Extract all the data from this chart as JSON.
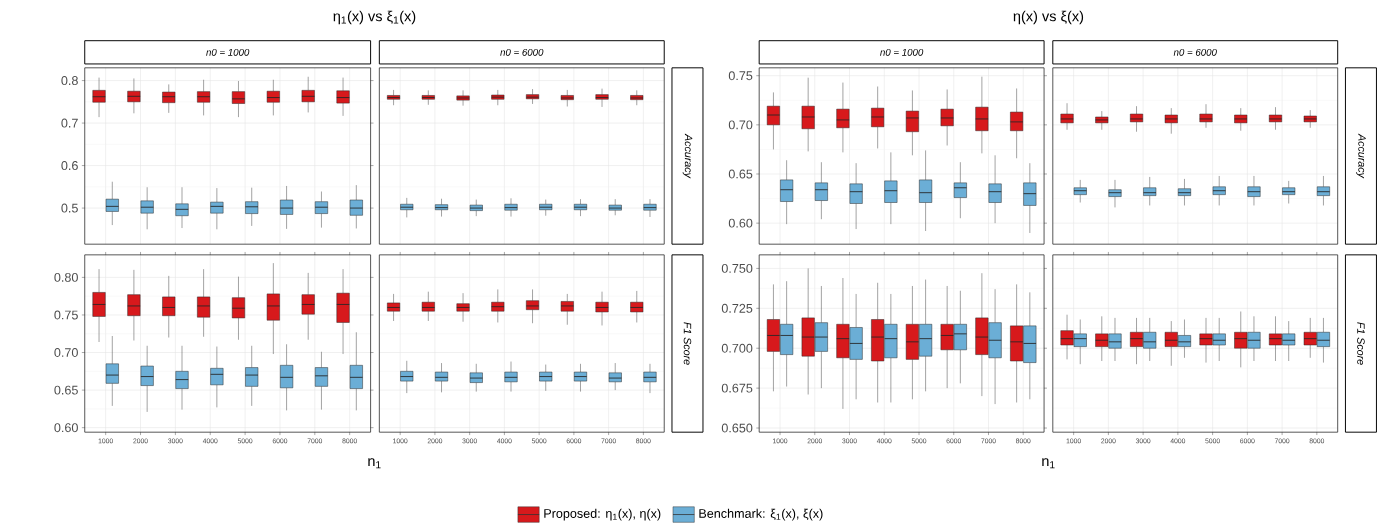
{
  "chart_data": [
    {
      "type": "box",
      "title": "n0 = 1000",
      "annotations": [
        "η$_{1}$(x) vs ξ$_{1}$(x)"
      ],
      "legend": "bottom",
      "grid": true,
      "tick_labels": "y",
      "categories": [
        "1000",
        "2000",
        "3000",
        "4000",
        "5000",
        "6000",
        "7000",
        "8000"
      ],
      "ylim": [
        0.415,
        0.83
      ],
      "yticks": [
        0.5,
        0.6,
        0.7,
        0.8
      ],
      "series": [
        {
          "name": "Proposed: η$_{1}$(x), η(x)",
          "color": "#d7191c",
          "boxes": [
            {
              "low": 0.714,
              "q1": 0.749,
              "median": 0.762,
              "q3": 0.777,
              "high": 0.807
            },
            {
              "low": 0.723,
              "q1": 0.75,
              "median": 0.763,
              "q3": 0.775,
              "high": 0.805
            },
            {
              "low": 0.724,
              "q1": 0.748,
              "median": 0.762,
              "q3": 0.773,
              "high": 0.791
            },
            {
              "low": 0.718,
              "q1": 0.749,
              "median": 0.762,
              "q3": 0.774,
              "high": 0.802
            },
            {
              "low": 0.714,
              "q1": 0.746,
              "median": 0.757,
              "q3": 0.774,
              "high": 0.799
            },
            {
              "low": 0.718,
              "q1": 0.749,
              "median": 0.76,
              "q3": 0.775,
              "high": 0.802
            },
            {
              "low": 0.725,
              "q1": 0.75,
              "median": 0.763,
              "q3": 0.777,
              "high": 0.809
            },
            {
              "low": 0.717,
              "q1": 0.747,
              "median": 0.76,
              "q3": 0.776,
              "high": 0.807
            }
          ]
        },
        {
          "name": "Benchmark: ξ$_{1}$(x), ξ(x)",
          "color": "#6baed6",
          "boxes": [
            {
              "low": 0.46,
              "q1": 0.492,
              "median": 0.504,
              "q3": 0.521,
              "high": 0.562
            },
            {
              "low": 0.45,
              "q1": 0.488,
              "median": 0.502,
              "q3": 0.517,
              "high": 0.549
            },
            {
              "low": 0.453,
              "q1": 0.482,
              "median": 0.497,
              "q3": 0.51,
              "high": 0.549
            },
            {
              "low": 0.45,
              "q1": 0.488,
              "median": 0.504,
              "q3": 0.514,
              "high": 0.547
            },
            {
              "low": 0.458,
              "q1": 0.487,
              "median": 0.503,
              "q3": 0.515,
              "high": 0.548
            },
            {
              "low": 0.451,
              "q1": 0.485,
              "median": 0.5,
              "q3": 0.519,
              "high": 0.552
            },
            {
              "low": 0.454,
              "q1": 0.487,
              "median": 0.502,
              "q3": 0.515,
              "high": 0.539
            },
            {
              "low": 0.452,
              "q1": 0.483,
              "median": 0.5,
              "q3": 0.519,
              "high": 0.554
            }
          ]
        }
      ]
    },
    {
      "type": "box",
      "title": "n0 = 6000",
      "annotations": [
        "Accuracy"
      ],
      "grid": true,
      "tick_labels": false,
      "categories": [
        "1000",
        "2000",
        "3000",
        "4000",
        "5000",
        "6000",
        "7000",
        "8000"
      ],
      "ylim": [
        0.415,
        0.83
      ],
      "yticks": [
        0.5,
        0.6,
        0.7,
        0.8
      ],
      "series": [
        {
          "color": "#d7191c",
          "boxes": [
            {
              "low": 0.742,
              "q1": 0.756,
              "median": 0.76,
              "q3": 0.765,
              "high": 0.778
            },
            {
              "low": 0.743,
              "q1": 0.756,
              "median": 0.76,
              "q3": 0.765,
              "high": 0.777
            },
            {
              "low": 0.741,
              "q1": 0.754,
              "median": 0.759,
              "q3": 0.764,
              "high": 0.777
            },
            {
              "low": 0.742,
              "q1": 0.756,
              "median": 0.761,
              "q3": 0.766,
              "high": 0.778
            },
            {
              "low": 0.745,
              "q1": 0.757,
              "median": 0.761,
              "q3": 0.767,
              "high": 0.78
            },
            {
              "low": 0.739,
              "q1": 0.755,
              "median": 0.759,
              "q3": 0.765,
              "high": 0.778
            },
            {
              "low": 0.738,
              "q1": 0.756,
              "median": 0.76,
              "q3": 0.767,
              "high": 0.781
            },
            {
              "low": 0.742,
              "q1": 0.755,
              "median": 0.759,
              "q3": 0.765,
              "high": 0.777
            }
          ]
        },
        {
          "color": "#6baed6",
          "boxes": [
            {
              "low": 0.478,
              "q1": 0.496,
              "median": 0.502,
              "q3": 0.509,
              "high": 0.524
            },
            {
              "low": 0.48,
              "q1": 0.496,
              "median": 0.501,
              "q3": 0.508,
              "high": 0.522
            },
            {
              "low": 0.481,
              "q1": 0.494,
              "median": 0.5,
              "q3": 0.507,
              "high": 0.52
            },
            {
              "low": 0.48,
              "q1": 0.495,
              "median": 0.501,
              "q3": 0.509,
              "high": 0.523
            },
            {
              "low": 0.482,
              "q1": 0.496,
              "median": 0.502,
              "q3": 0.509,
              "high": 0.52
            },
            {
              "low": 0.481,
              "q1": 0.496,
              "median": 0.502,
              "q3": 0.509,
              "high": 0.521
            },
            {
              "low": 0.483,
              "q1": 0.495,
              "median": 0.5,
              "q3": 0.507,
              "high": 0.521
            },
            {
              "low": 0.479,
              "q1": 0.495,
              "median": 0.501,
              "q3": 0.509,
              "high": 0.521
            }
          ]
        }
      ]
    },
    {
      "type": "box",
      "xlabel": "n$_{1}$",
      "grid": true,
      "categories": [
        "1000",
        "2000",
        "3000",
        "4000",
        "5000",
        "6000",
        "7000",
        "8000"
      ],
      "ylim": [
        0.594,
        0.83
      ],
      "yticks": [
        {
          "value": 0.6,
          "label": "0.60"
        },
        0.65,
        {
          "value": 0.7,
          "label": "0.70"
        },
        0.75,
        {
          "value": 0.8,
          "label": "0.80"
        }
      ],
      "series": [
        {
          "color": "#d7191c",
          "boxes": [
            {
              "low": 0.714,
              "q1": 0.748,
              "median": 0.764,
              "q3": 0.78,
              "high": 0.811
            },
            {
              "low": 0.716,
              "q1": 0.749,
              "median": 0.762,
              "q3": 0.777,
              "high": 0.81
            },
            {
              "low": 0.72,
              "q1": 0.749,
              "median": 0.76,
              "q3": 0.774,
              "high": 0.802
            },
            {
              "low": 0.721,
              "q1": 0.747,
              "median": 0.762,
              "q3": 0.774,
              "high": 0.811
            },
            {
              "low": 0.717,
              "q1": 0.746,
              "median": 0.759,
              "q3": 0.773,
              "high": 0.801
            },
            {
              "low": 0.698,
              "q1": 0.743,
              "median": 0.762,
              "q3": 0.778,
              "high": 0.819
            },
            {
              "low": 0.717,
              "q1": 0.751,
              "median": 0.764,
              "q3": 0.777,
              "high": 0.806
            },
            {
              "low": 0.698,
              "q1": 0.74,
              "median": 0.764,
              "q3": 0.779,
              "high": 0.811
            }
          ]
        },
        {
          "color": "#6baed6",
          "boxes": [
            {
              "low": 0.629,
              "q1": 0.659,
              "median": 0.67,
              "q3": 0.685,
              "high": 0.722
            },
            {
              "low": 0.621,
              "q1": 0.656,
              "median": 0.668,
              "q3": 0.682,
              "high": 0.709
            },
            {
              "low": 0.624,
              "q1": 0.652,
              "median": 0.664,
              "q3": 0.675,
              "high": 0.709
            },
            {
              "low": 0.627,
              "q1": 0.657,
              "median": 0.671,
              "q3": 0.679,
              "high": 0.708
            },
            {
              "low": 0.629,
              "q1": 0.655,
              "median": 0.67,
              "q3": 0.68,
              "high": 0.709
            },
            {
              "low": 0.623,
              "q1": 0.653,
              "median": 0.667,
              "q3": 0.683,
              "high": 0.711
            },
            {
              "low": 0.624,
              "q1": 0.655,
              "median": 0.669,
              "q3": 0.68,
              "high": 0.701
            },
            {
              "low": 0.623,
              "q1": 0.652,
              "median": 0.667,
              "q3": 0.683,
              "high": 0.727
            }
          ]
        }
      ]
    },
    {
      "type": "box",
      "annotations": [
        "F1 Score"
      ],
      "grid": true,
      "tick_labels": "x",
      "categories": [
        "1000",
        "2000",
        "3000",
        "4000",
        "5000",
        "6000",
        "7000",
        "8000"
      ],
      "ylim": [
        0.594,
        0.83
      ],
      "yticks": [
        0.6,
        0.65,
        0.7,
        0.75,
        0.8
      ],
      "series": [
        {
          "color": "#d7191c",
          "boxes": [
            {
              "low": 0.742,
              "q1": 0.755,
              "median": 0.76,
              "q3": 0.766,
              "high": 0.778
            },
            {
              "low": 0.742,
              "q1": 0.755,
              "median": 0.76,
              "q3": 0.767,
              "high": 0.781
            },
            {
              "low": 0.741,
              "q1": 0.755,
              "median": 0.76,
              "q3": 0.765,
              "high": 0.779
            },
            {
              "low": 0.74,
              "q1": 0.755,
              "median": 0.761,
              "q3": 0.767,
              "high": 0.784
            },
            {
              "low": 0.739,
              "q1": 0.757,
              "median": 0.762,
              "q3": 0.769,
              "high": 0.784
            },
            {
              "low": 0.737,
              "q1": 0.755,
              "median": 0.762,
              "q3": 0.768,
              "high": 0.778
            },
            {
              "low": 0.736,
              "q1": 0.754,
              "median": 0.76,
              "q3": 0.767,
              "high": 0.781
            },
            {
              "low": 0.74,
              "q1": 0.754,
              "median": 0.76,
              "q3": 0.767,
              "high": 0.782
            }
          ]
        },
        {
          "color": "#6baed6",
          "boxes": [
            {
              "low": 0.646,
              "q1": 0.662,
              "median": 0.668,
              "q3": 0.675,
              "high": 0.689
            },
            {
              "low": 0.647,
              "q1": 0.662,
              "median": 0.667,
              "q3": 0.674,
              "high": 0.686
            },
            {
              "low": 0.648,
              "q1": 0.66,
              "median": 0.666,
              "q3": 0.673,
              "high": 0.685
            },
            {
              "low": 0.648,
              "q1": 0.661,
              "median": 0.667,
              "q3": 0.674,
              "high": 0.688
            },
            {
              "low": 0.649,
              "q1": 0.662,
              "median": 0.668,
              "q3": 0.674,
              "high": 0.684
            },
            {
              "low": 0.648,
              "q1": 0.662,
              "median": 0.668,
              "q3": 0.674,
              "high": 0.685
            },
            {
              "low": 0.65,
              "q1": 0.661,
              "median": 0.666,
              "q3": 0.673,
              "high": 0.686
            },
            {
              "low": 0.646,
              "q1": 0.661,
              "median": 0.667,
              "q3": 0.674,
              "high": 0.685
            }
          ]
        }
      ]
    },
    {
      "type": "box",
      "title": "n0 = 1000",
      "annotations": [
        "η(x) vs ξ(x)"
      ],
      "grid": true,
      "tick_labels": "y",
      "categories": [
        "1000",
        "2000",
        "3000",
        "4000",
        "5000",
        "6000",
        "7000",
        "8000"
      ],
      "ylim": [
        0.5786,
        0.758
      ],
      "yticks": [
        {
          "value": 0.6,
          "label": "0.60"
        },
        0.65,
        {
          "value": 0.7,
          "label": "0.70"
        },
        0.75
      ],
      "series": [
        {
          "color": "#d7191c",
          "boxes": [
            {
              "low": 0.675,
              "q1": 0.7,
              "median": 0.71,
              "q3": 0.719,
              "high": 0.733
            },
            {
              "low": 0.673,
              "q1": 0.696,
              "median": 0.708,
              "q3": 0.719,
              "high": 0.748
            },
            {
              "low": 0.672,
              "q1": 0.697,
              "median": 0.705,
              "q3": 0.716,
              "high": 0.743
            },
            {
              "low": 0.676,
              "q1": 0.698,
              "median": 0.708,
              "q3": 0.717,
              "high": 0.739
            },
            {
              "low": 0.669,
              "q1": 0.693,
              "median": 0.707,
              "q3": 0.714,
              "high": 0.735
            },
            {
              "low": 0.679,
              "q1": 0.699,
              "median": 0.707,
              "q3": 0.716,
              "high": 0.736
            },
            {
              "low": 0.671,
              "q1": 0.694,
              "median": 0.706,
              "q3": 0.718,
              "high": 0.749
            },
            {
              "low": 0.666,
              "q1": 0.694,
              "median": 0.703,
              "q3": 0.713,
              "high": 0.737
            }
          ]
        },
        {
          "color": "#6baed6",
          "boxes": [
            {
              "low": 0.599,
              "q1": 0.622,
              "median": 0.634,
              "q3": 0.644,
              "high": 0.664
            },
            {
              "low": 0.604,
              "q1": 0.623,
              "median": 0.634,
              "q3": 0.641,
              "high": 0.662
            },
            {
              "low": 0.594,
              "q1": 0.62,
              "median": 0.632,
              "q3": 0.64,
              "high": 0.661
            },
            {
              "low": 0.599,
              "q1": 0.621,
              "median": 0.633,
              "q3": 0.643,
              "high": 0.672
            },
            {
              "low": 0.592,
              "q1": 0.621,
              "median": 0.631,
              "q3": 0.644,
              "high": 0.674
            },
            {
              "low": 0.605,
              "q1": 0.626,
              "median": 0.636,
              "q3": 0.641,
              "high": 0.662
            },
            {
              "low": 0.6,
              "q1": 0.621,
              "median": 0.632,
              "q3": 0.64,
              "high": 0.669
            },
            {
              "low": 0.59,
              "q1": 0.618,
              "median": 0.63,
              "q3": 0.641,
              "high": 0.661
            }
          ]
        }
      ]
    },
    {
      "type": "box",
      "title": "n0 = 6000",
      "annotations": [
        "Accuracy"
      ],
      "grid": true,
      "tick_labels": false,
      "categories": [
        "1000",
        "2000",
        "3000",
        "4000",
        "5000",
        "6000",
        "7000",
        "8000"
      ],
      "ylim": [
        0.5786,
        0.758
      ],
      "yticks": [
        0.6,
        0.65,
        0.7,
        0.75
      ],
      "series": [
        {
          "color": "#d7191c",
          "boxes": [
            {
              "low": 0.695,
              "q1": 0.702,
              "median": 0.706,
              "q3": 0.711,
              "high": 0.722
            },
            {
              "low": 0.695,
              "q1": 0.702,
              "median": 0.705,
              "q3": 0.708,
              "high": 0.714
            },
            {
              "low": 0.693,
              "q1": 0.703,
              "median": 0.706,
              "q3": 0.711,
              "high": 0.719
            },
            {
              "low": 0.691,
              "q1": 0.702,
              "median": 0.706,
              "q3": 0.71,
              "high": 0.717
            },
            {
              "low": 0.697,
              "q1": 0.703,
              "median": 0.706,
              "q3": 0.711,
              "high": 0.721
            },
            {
              "low": 0.694,
              "q1": 0.702,
              "median": 0.706,
              "q3": 0.71,
              "high": 0.717
            },
            {
              "low": 0.695,
              "q1": 0.703,
              "median": 0.706,
              "q3": 0.71,
              "high": 0.718
            },
            {
              "low": 0.697,
              "q1": 0.703,
              "median": 0.706,
              "q3": 0.709,
              "high": 0.715
            }
          ]
        },
        {
          "color": "#6baed6",
          "boxes": [
            {
              "low": 0.621,
              "q1": 0.629,
              "median": 0.633,
              "q3": 0.636,
              "high": 0.644
            },
            {
              "low": 0.616,
              "q1": 0.627,
              "median": 0.631,
              "q3": 0.634,
              "high": 0.644
            },
            {
              "low": 0.618,
              "q1": 0.628,
              "median": 0.631,
              "q3": 0.636,
              "high": 0.647
            },
            {
              "low": 0.618,
              "q1": 0.628,
              "median": 0.631,
              "q3": 0.635,
              "high": 0.645
            },
            {
              "low": 0.618,
              "q1": 0.629,
              "median": 0.633,
              "q3": 0.637,
              "high": 0.648
            },
            {
              "low": 0.618,
              "q1": 0.627,
              "median": 0.632,
              "q3": 0.637,
              "high": 0.648
            },
            {
              "low": 0.62,
              "q1": 0.629,
              "median": 0.632,
              "q3": 0.636,
              "high": 0.643
            },
            {
              "low": 0.618,
              "q1": 0.628,
              "median": 0.632,
              "q3": 0.637,
              "high": 0.648
            }
          ]
        }
      ]
    },
    {
      "type": "box",
      "xlabel": "n$_{1}$",
      "grid": true,
      "categories": [
        "1000",
        "2000",
        "3000",
        "4000",
        "5000",
        "6000",
        "7000",
        "8000"
      ],
      "ylim": [
        0.6474,
        0.7585
      ],
      "yticks": [
        {
          "value": 0.65,
          "label": "0.650"
        },
        {
          "value": 0.675,
          "label": "0.675"
        },
        {
          "value": 0.7,
          "label": "0.700"
        },
        {
          "value": 0.725,
          "label": "0.725"
        },
        {
          "value": 0.75,
          "label": "0.750"
        }
      ],
      "series": [
        {
          "color": "#d7191c",
          "boxes": [
            {
              "low": 0.673,
              "q1": 0.698,
              "median": 0.708,
              "q3": 0.718,
              "high": 0.74
            },
            {
              "low": 0.671,
              "q1": 0.695,
              "median": 0.707,
              "q3": 0.719,
              "high": 0.75
            },
            {
              "low": 0.662,
              "q1": 0.694,
              "median": 0.706,
              "q3": 0.715,
              "high": 0.744
            },
            {
              "low": 0.666,
              "q1": 0.692,
              "median": 0.707,
              "q3": 0.718,
              "high": 0.741
            },
            {
              "low": 0.668,
              "q1": 0.693,
              "median": 0.704,
              "q3": 0.715,
              "high": 0.739
            },
            {
              "low": 0.675,
              "q1": 0.699,
              "median": 0.708,
              "q3": 0.715,
              "high": 0.739
            },
            {
              "low": 0.67,
              "q1": 0.696,
              "median": 0.707,
              "q3": 0.719,
              "high": 0.747
            },
            {
              "low": 0.666,
              "q1": 0.692,
              "median": 0.704,
              "q3": 0.714,
              "high": 0.74
            }
          ]
        },
        {
          "color": "#6baed6",
          "boxes": [
            {
              "low": 0.676,
              "q1": 0.696,
              "median": 0.708,
              "q3": 0.715,
              "high": 0.742
            },
            {
              "low": 0.675,
              "q1": 0.698,
              "median": 0.707,
              "q3": 0.716,
              "high": 0.739
            },
            {
              "low": 0.668,
              "q1": 0.693,
              "median": 0.703,
              "q3": 0.713,
              "high": 0.734
            },
            {
              "low": 0.666,
              "q1": 0.694,
              "median": 0.706,
              "q3": 0.715,
              "high": 0.734
            },
            {
              "low": 0.673,
              "q1": 0.695,
              "median": 0.706,
              "q3": 0.715,
              "high": 0.743
            },
            {
              "low": 0.678,
              "q1": 0.699,
              "median": 0.709,
              "q3": 0.715,
              "high": 0.736
            },
            {
              "low": 0.665,
              "q1": 0.694,
              "median": 0.705,
              "q3": 0.716,
              "high": 0.737
            },
            {
              "low": 0.668,
              "q1": 0.691,
              "median": 0.703,
              "q3": 0.714,
              "high": 0.735
            }
          ]
        }
      ]
    },
    {
      "type": "box",
      "annotations": [
        "F1 Score"
      ],
      "grid": true,
      "tick_labels": "x",
      "categories": [
        "1000",
        "2000",
        "3000",
        "4000",
        "5000",
        "6000",
        "7000",
        "8000"
      ],
      "ylim": [
        0.6474,
        0.7585
      ],
      "yticks": [
        0.65,
        0.675,
        0.7,
        0.725,
        0.75
      ],
      "series": [
        {
          "color": "#d7191c",
          "boxes": [
            {
              "low": 0.693,
              "q1": 0.702,
              "median": 0.706,
              "q3": 0.711,
              "high": 0.721
            },
            {
              "low": 0.692,
              "q1": 0.701,
              "median": 0.705,
              "q3": 0.709,
              "high": 0.72
            },
            {
              "low": 0.69,
              "q1": 0.701,
              "median": 0.706,
              "q3": 0.71,
              "high": 0.719
            },
            {
              "low": 0.689,
              "q1": 0.701,
              "median": 0.705,
              "q3": 0.71,
              "high": 0.717
            },
            {
              "low": 0.691,
              "q1": 0.702,
              "median": 0.706,
              "q3": 0.709,
              "high": 0.719
            },
            {
              "low": 0.688,
              "q1": 0.7,
              "median": 0.706,
              "q3": 0.71,
              "high": 0.723
            },
            {
              "low": 0.692,
              "q1": 0.702,
              "median": 0.706,
              "q3": 0.709,
              "high": 0.72
            },
            {
              "low": 0.694,
              "q1": 0.702,
              "median": 0.706,
              "q3": 0.71,
              "high": 0.719
            }
          ]
        },
        {
          "color": "#6baed6",
          "boxes": [
            {
              "low": 0.69,
              "q1": 0.701,
              "median": 0.706,
              "q3": 0.709,
              "high": 0.718
            },
            {
              "low": 0.692,
              "q1": 0.7,
              "median": 0.704,
              "q3": 0.709,
              "high": 0.719
            },
            {
              "low": 0.692,
              "q1": 0.7,
              "median": 0.704,
              "q3": 0.71,
              "high": 0.719
            },
            {
              "low": 0.694,
              "q1": 0.701,
              "median": 0.704,
              "q3": 0.708,
              "high": 0.718
            },
            {
              "low": 0.692,
              "q1": 0.702,
              "median": 0.705,
              "q3": 0.709,
              "high": 0.719
            },
            {
              "low": 0.692,
              "q1": 0.7,
              "median": 0.705,
              "q3": 0.71,
              "high": 0.72
            },
            {
              "low": 0.692,
              "q1": 0.702,
              "median": 0.705,
              "q3": 0.709,
              "high": 0.717
            },
            {
              "low": 0.691,
              "q1": 0.701,
              "median": 0.705,
              "q3": 0.71,
              "high": 0.719
            }
          ]
        }
      ]
    }
  ]
}
